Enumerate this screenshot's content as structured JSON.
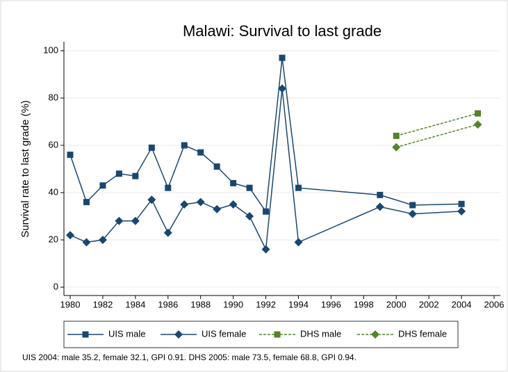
{
  "chart_data": {
    "type": "line",
    "title": "Malawi: Survival to last grade",
    "y_label": "Survival rate to last grade (%)",
    "note": "UIS 2004: male 35.2, female 32.1, GPI 0.91. DHS 2005: male 73.5, female 68.8, GPI 0.94.",
    "xlim": [
      1980,
      2006
    ],
    "xticks": [
      1980,
      1982,
      1984,
      1986,
      1988,
      1990,
      1992,
      1994,
      1996,
      1998,
      2000,
      2002,
      2004,
      2006
    ],
    "ylim": [
      0,
      100
    ],
    "yticks": [
      0,
      20,
      40,
      60,
      80,
      100
    ],
    "grid": true,
    "legend": "bottom",
    "series": [
      {
        "name": "UIS male",
        "color": "#1a476f",
        "marker": "square",
        "dashed": false,
        "x": [
          1980,
          1981,
          1982,
          1983,
          1984,
          1985,
          1986,
          1987,
          1988,
          1989,
          1990,
          1991,
          1992,
          1993,
          1994,
          1999,
          2001,
          2004
        ],
        "values": [
          56,
          36,
          43,
          48,
          47,
          59,
          42,
          60,
          57,
          51,
          44,
          42,
          32,
          97,
          42,
          39,
          34.7,
          35.2
        ]
      },
      {
        "name": "UIS female",
        "color": "#1a476f",
        "marker": "diamond",
        "dashed": false,
        "x": [
          1980,
          1981,
          1982,
          1983,
          1984,
          1985,
          1986,
          1987,
          1988,
          1989,
          1990,
          1991,
          1992,
          1993,
          1994,
          1999,
          2001,
          2004
        ],
        "values": [
          22,
          19,
          20,
          28,
          28,
          37,
          23,
          35,
          36,
          33,
          35,
          30,
          16,
          84,
          19,
          34,
          31,
          32.1
        ]
      },
      {
        "name": "DHS male",
        "color": "#55822b",
        "marker": "square",
        "dashed": true,
        "x": [
          2000,
          2005
        ],
        "values": [
          64,
          73.5
        ]
      },
      {
        "name": "DHS female",
        "color": "#55822b",
        "marker": "diamond",
        "dashed": true,
        "x": [
          2000,
          2005
        ],
        "values": [
          59.2,
          68.8
        ]
      }
    ]
  }
}
